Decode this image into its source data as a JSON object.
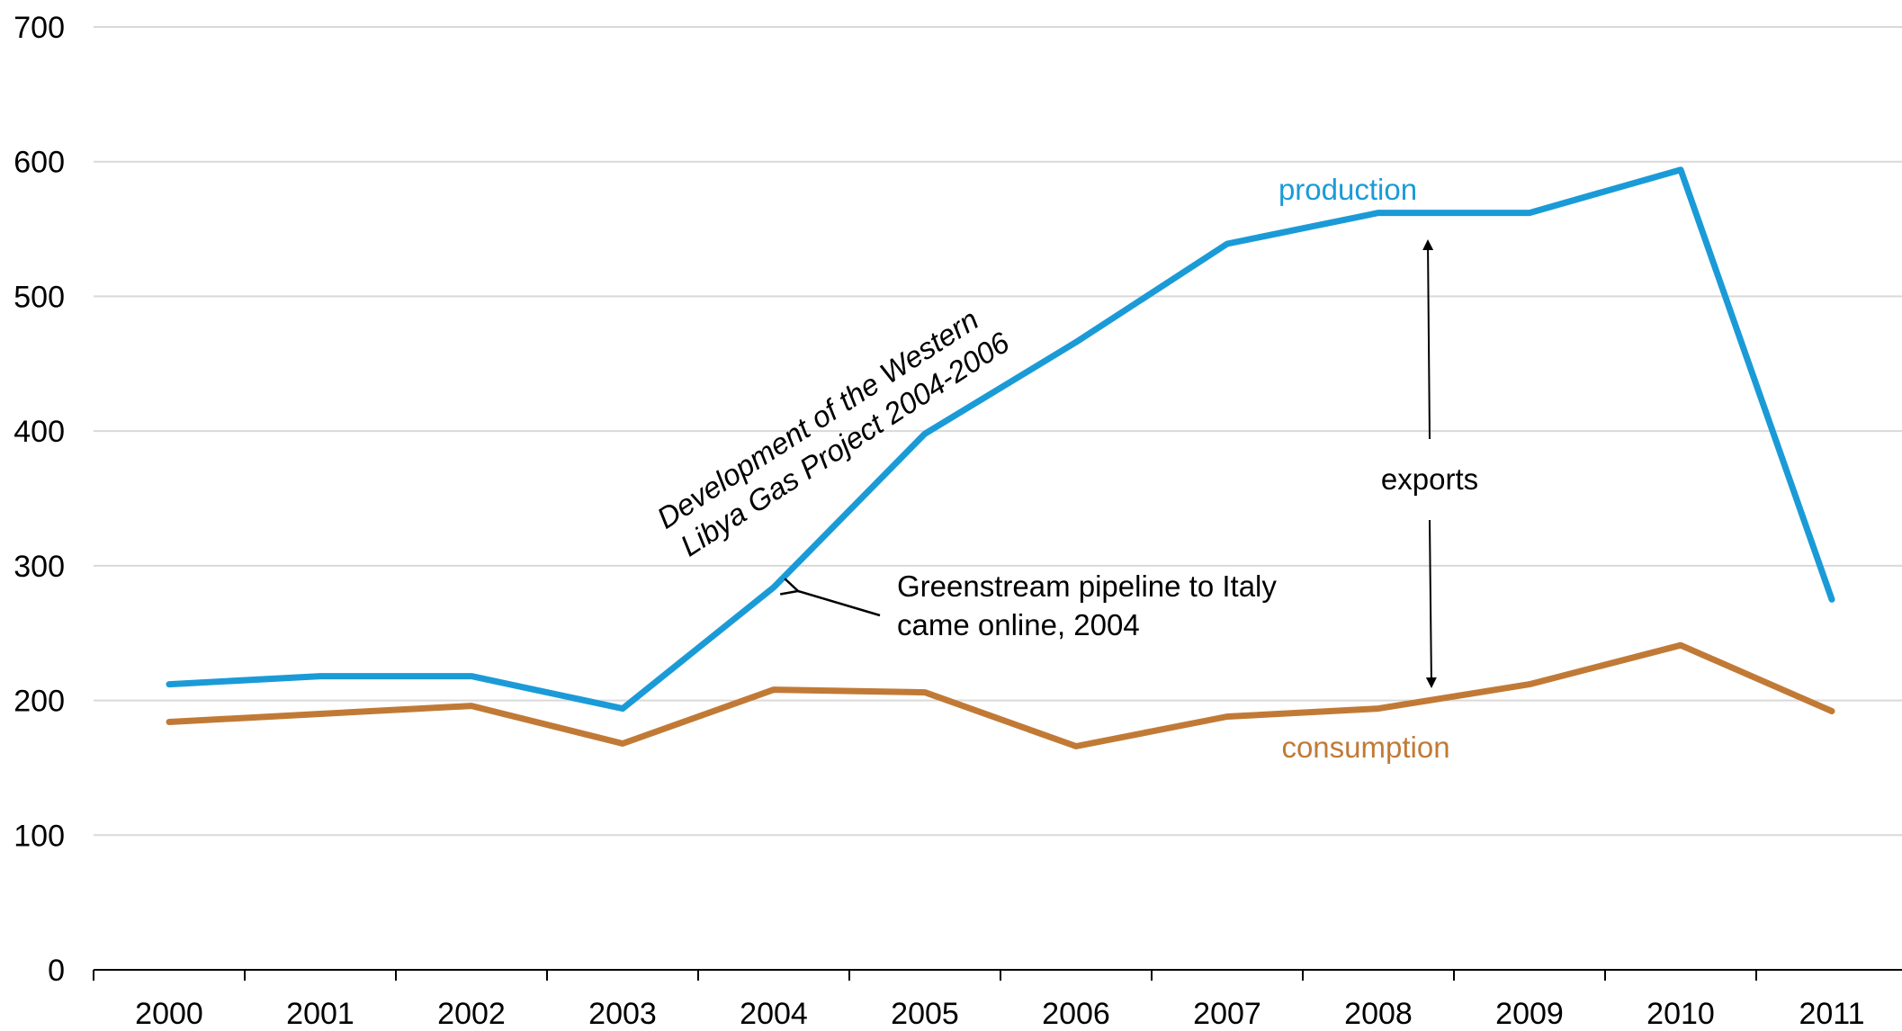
{
  "chart_data": {
    "type": "line",
    "title": "",
    "xlabel": "",
    "ylabel": "",
    "categories": [
      "2000",
      "2001",
      "2002",
      "2003",
      "2004",
      "2005",
      "2006",
      "2007",
      "2008",
      "2009",
      "2010",
      "2011"
    ],
    "ylim": [
      0,
      700
    ],
    "yticks": [
      0,
      100,
      200,
      300,
      400,
      500,
      600,
      700
    ],
    "grid": true,
    "series": [
      {
        "name": "production",
        "color": "#1a9bd7",
        "values": [
          212,
          218,
          218,
          194,
          284,
          398,
          466,
          539,
          562,
          562,
          594,
          275
        ]
      },
      {
        "name": "consumption",
        "color": "#c17a36",
        "values": [
          184,
          190,
          196,
          168,
          208,
          206,
          166,
          188,
          194,
          212,
          241,
          192
        ]
      }
    ],
    "annotations": {
      "western_libya_line1": "Development  of the Western",
      "western_libya_line2": "Libya Gas Project 2004-2006",
      "greenstream_line1": "Greenstream  pipeline to Italy",
      "greenstream_line2": "came online, 2004",
      "exports": "exports"
    }
  }
}
